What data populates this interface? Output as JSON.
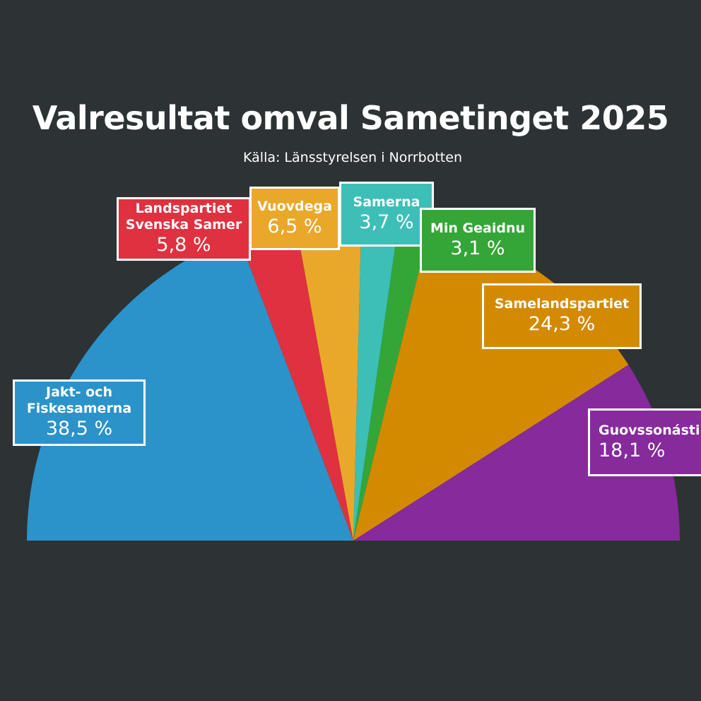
{
  "chart_data": {
    "type": "pie",
    "variant": "half-pie",
    "title": "Valresultat omval Sametinget 2025",
    "subtitle": "Källa: Länsstyrelsen i Norrbotten",
    "slices": [
      {
        "name": "Jakt- och\nFiskesamerna",
        "value": 38.5,
        "label": "38,5 %",
        "color": "#2b93c9"
      },
      {
        "name": "Landspartiet\nSvenska Samer",
        "value": 5.8,
        "label": "5,8 %",
        "color": "#df3140"
      },
      {
        "name": "Vuovdega",
        "value": 6.5,
        "label": "6,5 %",
        "color": "#e9a82a"
      },
      {
        "name": "Samerna",
        "value": 3.7,
        "label": "3,7 %",
        "color": "#3dbfb7"
      },
      {
        "name": "Min Geaidnu",
        "value": 3.1,
        "label": "3,1 %",
        "color": "#34a637"
      },
      {
        "name": "Samelandspartiet",
        "value": 24.3,
        "label": "24,3 %",
        "color": "#d48a00"
      },
      {
        "name": "Guovssonásti",
        "value": 18.1,
        "label": "18,1 %",
        "color": "#862a9c"
      }
    ]
  }
}
